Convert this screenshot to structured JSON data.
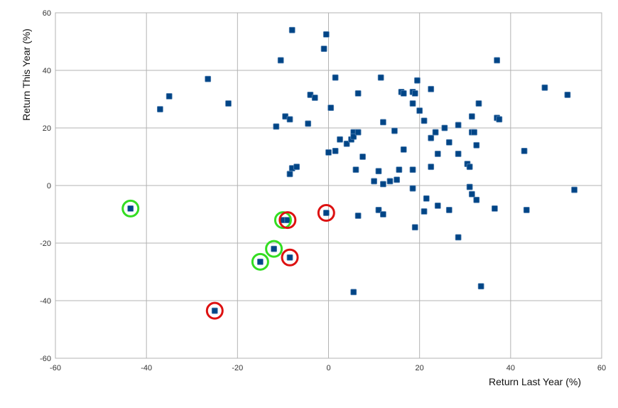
{
  "chart_data": {
    "type": "scatter",
    "title": "",
    "xlabel": "Return Last Year (%)",
    "ylabel": "Return This Year (%)",
    "xlim": [
      -60,
      60
    ],
    "ylim": [
      -60,
      60
    ],
    "xticks": [
      -60,
      -40,
      -20,
      0,
      20,
      40,
      60
    ],
    "yticks": [
      -60,
      -40,
      -20,
      0,
      20,
      40,
      60
    ],
    "grid": true,
    "legend": "none",
    "marker_color": "#004586",
    "highlight_green_color": "#33dd22",
    "highlight_red_color": "#dd1111",
    "points": [
      [
        -37,
        26.5
      ],
      [
        -35,
        31
      ],
      [
        -26.5,
        37
      ],
      [
        -22,
        28.5
      ],
      [
        -11.5,
        20.5
      ],
      [
        -10.5,
        43.5
      ],
      [
        -9.5,
        24
      ],
      [
        -8.5,
        23
      ],
      [
        -8.5,
        4
      ],
      [
        -8,
        54
      ],
      [
        -8,
        6
      ],
      [
        -7,
        6.5
      ],
      [
        -4.5,
        21.5
      ],
      [
        -4,
        31.5
      ],
      [
        -3,
        30.5
      ],
      [
        -1,
        47.5
      ],
      [
        -0.5,
        52.5
      ],
      [
        0,
        11.5
      ],
      [
        0.5,
        27
      ],
      [
        1.5,
        12
      ],
      [
        1.5,
        37.5
      ],
      [
        2.5,
        16
      ],
      [
        4,
        14.5
      ],
      [
        5,
        16
      ],
      [
        5.5,
        18.5
      ],
      [
        5.5,
        17
      ],
      [
        6,
        5.5
      ],
      [
        6.5,
        32
      ],
      [
        6.5,
        18.5
      ],
      [
        7.5,
        10
      ],
      [
        10,
        1.5
      ],
      [
        11,
        5
      ],
      [
        11.5,
        37.5
      ],
      [
        12,
        22
      ],
      [
        12,
        0.5
      ],
      [
        13.5,
        1.5
      ],
      [
        14.5,
        19
      ],
      [
        15,
        2
      ],
      [
        16,
        32.5
      ],
      [
        15.5,
        5.5
      ],
      [
        16.5,
        12.5
      ],
      [
        16.5,
        32
      ],
      [
        18.5,
        28.5
      ],
      [
        18.5,
        32.5
      ],
      [
        18.5,
        5.5
      ],
      [
        19,
        32
      ],
      [
        19.5,
        36.5
      ],
      [
        20,
        26
      ],
      [
        21,
        22.5
      ],
      [
        22.5,
        33.5
      ],
      [
        22.5,
        16.5
      ],
      [
        22.5,
        6.5
      ],
      [
        23.5,
        18.5
      ],
      [
        24,
        11
      ],
      [
        25.5,
        20
      ],
      [
        26.5,
        15
      ],
      [
        28.5,
        21
      ],
      [
        28.5,
        11
      ],
      [
        30.5,
        7.5
      ],
      [
        31,
        6.5
      ],
      [
        31.5,
        24
      ],
      [
        31.5,
        18.5
      ],
      [
        32,
        18.5
      ],
      [
        32.5,
        14
      ],
      [
        33,
        28.5
      ],
      [
        37,
        43.5
      ],
      [
        37,
        23.5
      ],
      [
        37.5,
        23
      ],
      [
        43,
        12
      ],
      [
        47.5,
        34
      ],
      [
        52.5,
        31.5
      ],
      [
        18.5,
        -1
      ],
      [
        21.5,
        -4.5
      ],
      [
        24,
        -7
      ],
      [
        21,
        -9
      ],
      [
        26.5,
        -8.5
      ],
      [
        31,
        -0.5
      ],
      [
        31.5,
        -3
      ],
      [
        32.5,
        -5
      ],
      [
        28.5,
        -18
      ],
      [
        19,
        -14.5
      ],
      [
        11,
        -8.5
      ],
      [
        12,
        -10
      ],
      [
        6.5,
        -10.5
      ],
      [
        5.5,
        -37
      ],
      [
        33.5,
        -35
      ],
      [
        36.5,
        -8
      ],
      [
        43.5,
        -8.5
      ],
      [
        54,
        -1.5
      ],
      [
        -43.5,
        -8
      ],
      [
        -10,
        -12
      ],
      [
        -9,
        -12
      ],
      [
        -0.5,
        -9.5
      ],
      [
        -12,
        -22
      ],
      [
        -15,
        -26.5
      ],
      [
        -8.5,
        -25
      ],
      [
        -25,
        -43.5
      ]
    ],
    "highlighted_green": [
      [
        -43.5,
        -8
      ],
      [
        -10,
        -12
      ],
      [
        -12,
        -22
      ],
      [
        -15,
        -26.5
      ]
    ],
    "highlighted_red": [
      [
        -9,
        -12
      ],
      [
        -0.5,
        -9.5
      ],
      [
        -8.5,
        -25
      ],
      [
        -25,
        -43.5
      ]
    ]
  }
}
